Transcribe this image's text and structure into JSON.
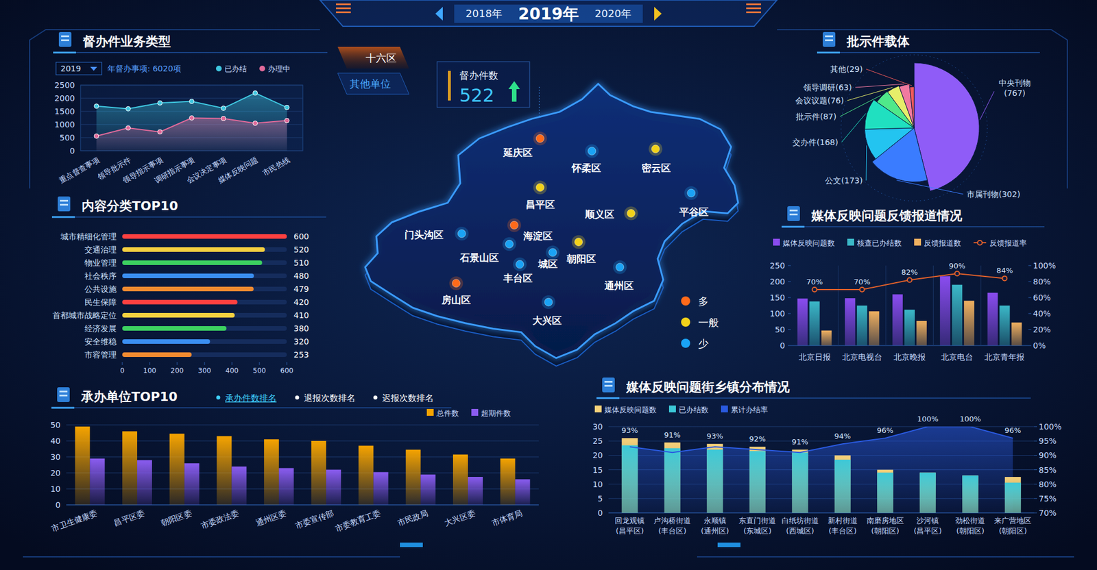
{
  "header": {
    "prev_year": "2018年",
    "year": "2019年",
    "next_year": "2020年"
  },
  "tabs": [
    "十六区",
    "其他单位"
  ],
  "counter": {
    "label": "督办件数",
    "value": 522
  },
  "map": {
    "regions": [
      {
        "name": "延庆区",
        "level": "多"
      },
      {
        "name": "怀柔区",
        "level": "少"
      },
      {
        "name": "密云区",
        "level": "一般"
      },
      {
        "name": "昌平区",
        "level": "一般"
      },
      {
        "name": "顺义区",
        "level": "一般"
      },
      {
        "name": "平谷区",
        "level": "少"
      },
      {
        "name": "门头沟区",
        "level": "少"
      },
      {
        "name": "海淀区",
        "level": "多"
      },
      {
        "name": "石景山区",
        "level": "少"
      },
      {
        "name": "城区",
        "level": "少"
      },
      {
        "name": "朝阳区",
        "level": "一般"
      },
      {
        "name": "丰台区",
        "level": "少"
      },
      {
        "name": "通州区",
        "level": "少"
      },
      {
        "name": "房山区",
        "level": "多"
      },
      {
        "name": "大兴区",
        "level": "少"
      }
    ],
    "legend": [
      {
        "label": "多",
        "color": "#ff6a1a"
      },
      {
        "label": "一般",
        "color": "#f2d21a"
      },
      {
        "label": "少",
        "color": "#1aa3f5"
      }
    ]
  },
  "chart_data": [
    {
      "type": "area",
      "title": "督办件业务类型",
      "filter": "2019",
      "subtitle": "年督办事项: 6020项",
      "categories": [
        "重点督查事项",
        "领导批示件",
        "领导指示事项",
        "调研指示事项",
        "会议决定事项",
        "媒体反映问题",
        "市民热线"
      ],
      "series": [
        {
          "name": "已办结",
          "color": "#3fc7e0",
          "values": [
            1700,
            1600,
            1820,
            1880,
            1620,
            2200,
            1650
          ]
        },
        {
          "name": "办理中",
          "color": "#e06a9a",
          "values": [
            560,
            870,
            720,
            1250,
            1230,
            1050,
            1150
          ]
        }
      ],
      "ylim": [
        0,
        2500
      ],
      "yticks": [
        0,
        500,
        1000,
        1500,
        2000,
        2500
      ],
      "grid": true,
      "legend": "top-right",
      "marker": "circle"
    },
    {
      "type": "bar",
      "orientation": "horizontal",
      "title": "内容分类TOP10",
      "categories": [
        "城市精细化管理",
        "交通治理",
        "物业管理",
        "社会秩序",
        "公共设施",
        "民生保障",
        "首都城市战略定位",
        "经济发展",
        "安全维稳",
        "市容管理"
      ],
      "values": [
        600,
        520,
        510,
        480,
        479,
        420,
        410,
        380,
        320,
        253
      ],
      "colors": [
        "#ff4040",
        "#f5d040",
        "#3cd060",
        "#3a8ef0",
        "#f08a30",
        "#ff4040",
        "#f5d040",
        "#3cd060",
        "#3a8ef0",
        "#f08a30"
      ],
      "xlim": [
        0,
        600
      ],
      "xticks": [
        0,
        100,
        200,
        300,
        400,
        500,
        600
      ],
      "data_labels": true,
      "grid": false
    },
    {
      "type": "bar",
      "title": "承办单位TOP10",
      "tabs": [
        "承办件数排名",
        "退报次数排名",
        "迟报次数排名"
      ],
      "categories": [
        "市卫生健康委",
        "昌平区委",
        "朝阳区委",
        "市委政法委",
        "通州区委",
        "市委宣传部",
        "市委教育工委",
        "市民政局",
        "大兴区委",
        "市体育局"
      ],
      "series": [
        {
          "name": "总件数",
          "color": "#f5a300",
          "values": [
            49,
            46,
            44.5,
            43,
            41,
            40,
            37,
            34.5,
            31.5,
            29
          ]
        },
        {
          "name": "超期件数",
          "color": "#8a5cf0",
          "values": [
            29,
            28,
            26,
            24,
            23,
            22,
            20.5,
            19,
            17.5,
            16
          ]
        }
      ],
      "ylim": [
        0,
        50
      ],
      "yticks": [
        0,
        10,
        20,
        30,
        40,
        50
      ],
      "grid": true,
      "legend": "top-right"
    },
    {
      "type": "pie",
      "title": "批示件载体",
      "categories": [
        "中央刊物(767)",
        "市属刊物(302)",
        "公文(173)",
        "交办件(168)",
        "批示件(87)",
        "会议议题(76)",
        "领导调研(63)",
        "其他(29)"
      ],
      "values": [
        767,
        302,
        173,
        168,
        87,
        76,
        63,
        29
      ],
      "colors": [
        "#8f5cf7",
        "#3a7cff",
        "#23c4f0",
        "#20e0c0",
        "#4fe88a",
        "#e6ee6a",
        "#f07aa0",
        "#f05a5a"
      ]
    },
    {
      "type": "bar",
      "title": "媒体反映问题反馈报道情况",
      "categories": [
        "北京日报",
        "北京电视台",
        "北京晚报",
        "北京电台",
        "北京青年报"
      ],
      "series": [
        {
          "name": "媒体反映问题数",
          "color": "#8a4cf0",
          "values": [
            147,
            148,
            160,
            217,
            165
          ]
        },
        {
          "name": "核查已办结数",
          "color": "#3bb8c8",
          "values": [
            138,
            125,
            112,
            190,
            125
          ]
        },
        {
          "name": "反馈报道数",
          "color": "#f0b060",
          "values": [
            47,
            107,
            77,
            140,
            72
          ]
        },
        {
          "name": "反馈报道率",
          "type": "line",
          "axis": "y2",
          "color": "#e0602a",
          "marker": "circle",
          "values": [
            70,
            70,
            82,
            90,
            84
          ],
          "value_labels": [
            "70%",
            "70%",
            "82%",
            "90%",
            "84%"
          ],
          "data_labels": true
        }
      ],
      "ylim": [
        0,
        250
      ],
      "yticks": [
        0,
        50,
        100,
        150,
        200,
        250
      ],
      "y2lim": [
        0,
        100
      ],
      "y2ticks": [
        {
          "value": 0,
          "label": "0%"
        },
        {
          "value": 20,
          "label": "20%"
        },
        {
          "value": 40,
          "label": "40%"
        },
        {
          "value": 60,
          "label": "60%"
        },
        {
          "value": 80,
          "label": "80%"
        },
        {
          "value": 100,
          "label": "100%"
        }
      ],
      "grid": false,
      "legend": "top-left"
    },
    {
      "type": "bar",
      "title": "媒体反映问题街乡镇分布情况",
      "categories": [
        "回龙观镇(昌平区)",
        "卢沟桥街道(丰台区)",
        "永顺镇(通州区)",
        "东直门街道(东城区)",
        "白纸坊街道(西城区)",
        "新村街道(丰台区)",
        "南磨房地区(朝阳区)",
        "沙河镇(昌平区)",
        "劲松街道(朝阳区)",
        "来广营地区(朝阳区)"
      ],
      "series": [
        {
          "name": "媒体反映问题数",
          "color": "#f7d27a",
          "values": [
            26,
            24.5,
            24,
            23,
            22,
            20,
            15,
            14,
            13,
            12.5
          ]
        },
        {
          "name": "已办结数",
          "color": "#3cc8d8",
          "values": [
            23.5,
            22.5,
            22,
            21.5,
            21,
            18.5,
            14,
            14,
            13,
            10.5
          ]
        },
        {
          "name": "累计办结率",
          "type": "area",
          "axis": "y2",
          "color": "#2a5ae0",
          "values": [
            93,
            91,
            93,
            92,
            91,
            94,
            96,
            100,
            100,
            96
          ],
          "value_labels": [
            "93%",
            "91%",
            "93%",
            "92%",
            "91%",
            "94%",
            "96%",
            "100%",
            "100%",
            "96%"
          ],
          "data_labels": true
        }
      ],
      "ylim": [
        0,
        30
      ],
      "yticks": [
        0,
        5,
        10,
        15,
        20,
        25,
        30
      ],
      "y2lim": [
        70,
        100
      ],
      "y2ticks": [
        {
          "value": 70,
          "label": "70%"
        },
        {
          "value": 75,
          "label": "75%"
        },
        {
          "value": 80,
          "label": "80%"
        },
        {
          "value": 85,
          "label": "85%"
        },
        {
          "value": 90,
          "label": "90%"
        },
        {
          "value": 95,
          "label": "95%"
        },
        {
          "value": 100,
          "label": "100%"
        }
      ],
      "grid": true,
      "legend": "top-left"
    }
  ]
}
